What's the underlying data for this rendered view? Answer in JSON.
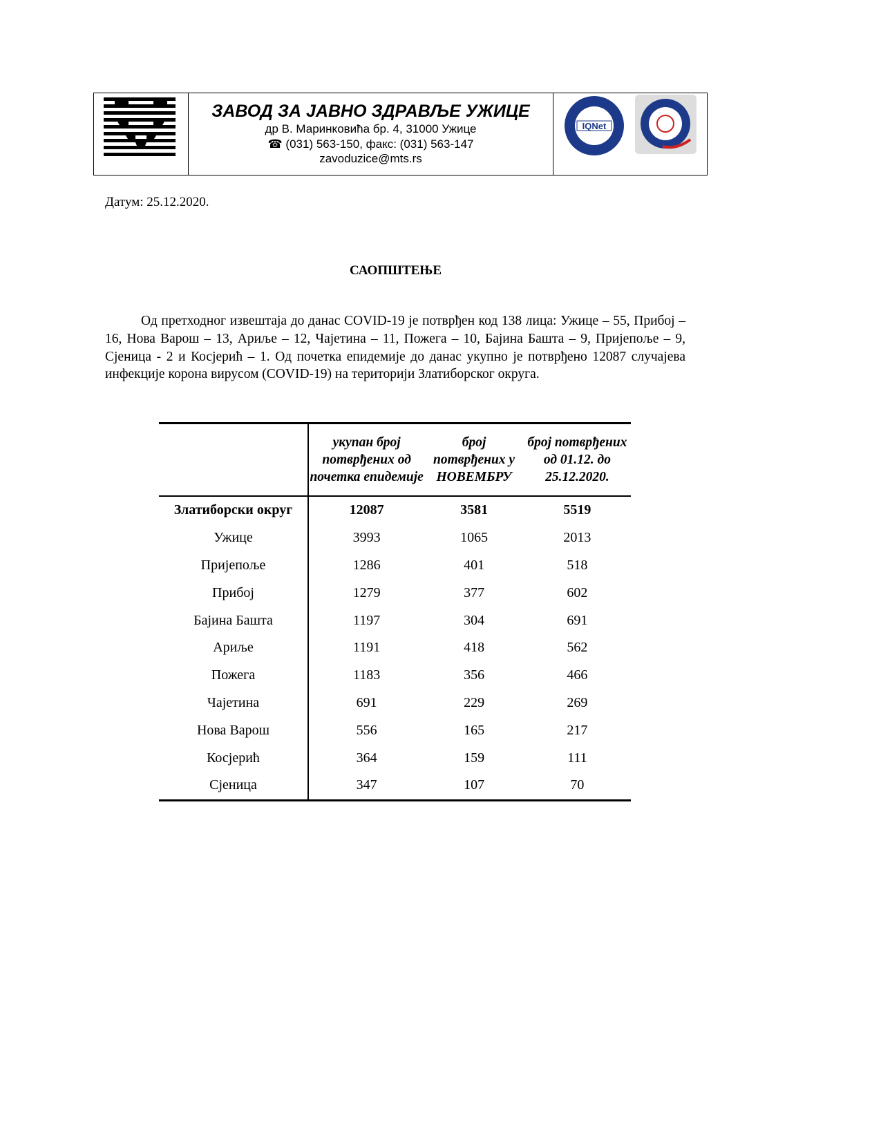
{
  "header": {
    "org_name": "ЗАВОД ЗА ЈАВНО ЗДРАВЉЕ УЖИЦЕ",
    "address": "др В. Маринковића бр. 4, 31000 Ужице",
    "phone_icon": "telephone-icon",
    "phone": "(031) 563-150, факс: (031) 563-147",
    "email": "zavoduzice@mts.rs",
    "logos": [
      "institute-logo",
      "iqnet-certified-management-system-logo",
      "iso-9001-qs-certification-logo"
    ]
  },
  "date": "Датум: 25.12.2020.",
  "title": "САОПШТЕЊЕ",
  "paragraph": "Од претходног извештаја до данас COVID-19 је потврђен код 138 лица: Ужице – 55, Прибој – 16, Нова Варош – 13, Ариље – 12, Чајетина – 11, Пожега – 10, Бајина Башта – 9, Пријепоље – 9, Сјеница - 2 и Косјерић – 1. Од почетка епидемије до данас укупно је потврђено 12087 случајева инфекције корона вирусом (COVID-19) на територији Златиборског округа.",
  "table": {
    "headers": [
      "",
      "укупан број потврђених од почетка епидемије",
      "број потврђених у НОВЕМБРУ",
      "број потврђених од 01.12. до 25.12.2020."
    ],
    "rows": [
      [
        "Златиборски округ",
        "12087",
        "3581",
        "5519"
      ],
      [
        "Ужице",
        "3993",
        "1065",
        "2013"
      ],
      [
        "Пријепоље",
        "1286",
        "401",
        "518"
      ],
      [
        "Прибој",
        "1279",
        "377",
        "602"
      ],
      [
        "Бајина Башта",
        "1197",
        "304",
        "691"
      ],
      [
        "Ариље",
        "1191",
        "418",
        "562"
      ],
      [
        "Пожега",
        "1183",
        "356",
        "466"
      ],
      [
        "Чајетина",
        "691",
        "229",
        "269"
      ],
      [
        "Нова Варош",
        "556",
        "165",
        "217"
      ],
      [
        "Косјерић",
        "364",
        "159",
        "111"
      ],
      [
        "Сјеница",
        "347",
        "107",
        "70"
      ]
    ]
  }
}
